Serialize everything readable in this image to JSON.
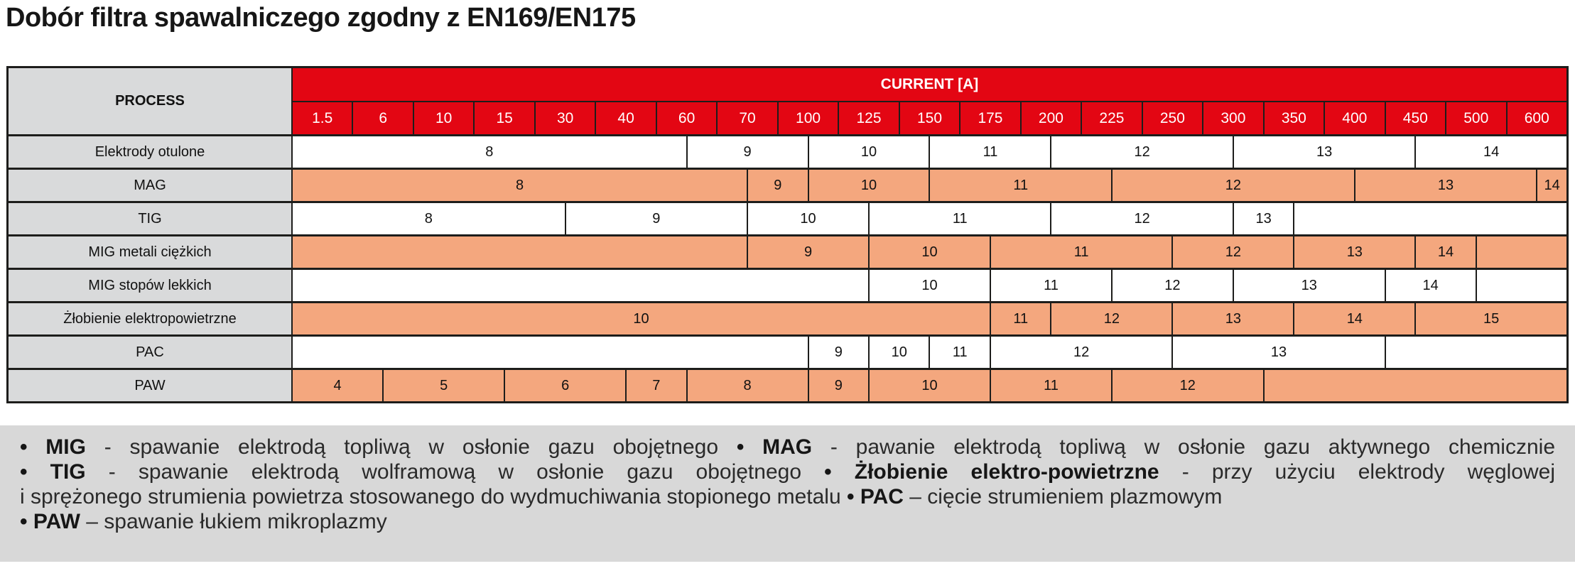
{
  "title": "Dobór filtra spawalniczego zgodny z EN169/EN175",
  "colors": {
    "header_red": "#e30613",
    "shade_salmon": "#f4a77e",
    "process_gray": "#d9dadb",
    "legend_gray": "#d8d8d8",
    "line_black": "#1d1d1b"
  },
  "table": {
    "process_header": "PROCESS",
    "current_header": "CURRENT [A]",
    "current_values": [
      "1.5",
      "6",
      "10",
      "15",
      "30",
      "40",
      "60",
      "70",
      "100",
      "125",
      "150",
      "175",
      "200",
      "225",
      "250",
      "300",
      "350",
      "400",
      "450",
      "500",
      "600"
    ],
    "half_columns_total": 42,
    "rows": [
      {
        "process": "Elektrody otulone",
        "shaded": false,
        "cells": [
          {
            "label": "8",
            "span": 13
          },
          {
            "label": "9",
            "span": 4
          },
          {
            "label": "10",
            "span": 4
          },
          {
            "label": "11",
            "span": 4
          },
          {
            "label": "12",
            "span": 6
          },
          {
            "label": "13",
            "span": 6
          },
          {
            "label": "14",
            "span": 5
          }
        ]
      },
      {
        "process": "MAG",
        "shaded": true,
        "cells": [
          {
            "label": "8",
            "span": 15
          },
          {
            "label": "9",
            "span": 2
          },
          {
            "label": "10",
            "span": 4
          },
          {
            "label": "11",
            "span": 6
          },
          {
            "label": "12",
            "span": 8
          },
          {
            "label": "13",
            "span": 6
          },
          {
            "label": "14",
            "span": 1
          }
        ]
      },
      {
        "process": "TIG",
        "shaded": false,
        "cells": [
          {
            "label": "8",
            "span": 9
          },
          {
            "label": "9",
            "span": 6
          },
          {
            "label": "10",
            "span": 4
          },
          {
            "label": "11",
            "span": 6
          },
          {
            "label": "12",
            "span": 6
          },
          {
            "label": "13",
            "span": 2
          },
          {
            "label": "",
            "span": 9
          }
        ]
      },
      {
        "process": "MIG metali ciężkich",
        "shaded": true,
        "cells": [
          {
            "label": "",
            "span": 15
          },
          {
            "label": "9",
            "span": 4
          },
          {
            "label": "10",
            "span": 4
          },
          {
            "label": "11",
            "span": 6
          },
          {
            "label": "12",
            "span": 4
          },
          {
            "label": "13",
            "span": 4
          },
          {
            "label": "14",
            "span": 2
          },
          {
            "label": "",
            "span": 3
          }
        ]
      },
      {
        "process": "MIG stopów lekkich",
        "shaded": false,
        "cells": [
          {
            "label": "",
            "span": 19
          },
          {
            "label": "10",
            "span": 4
          },
          {
            "label": "11",
            "span": 4
          },
          {
            "label": "12",
            "span": 4
          },
          {
            "label": "13",
            "span": 5
          },
          {
            "label": "14",
            "span": 3
          },
          {
            "label": "",
            "span": 3
          }
        ]
      },
      {
        "process": "Żłobienie elektropowietrzne",
        "shaded": true,
        "cells": [
          {
            "label": "10",
            "span": 23
          },
          {
            "label": "11",
            "span": 2
          },
          {
            "label": "12",
            "span": 4
          },
          {
            "label": "13",
            "span": 4
          },
          {
            "label": "14",
            "span": 4
          },
          {
            "label": "15",
            "span": 5
          }
        ]
      },
      {
        "process": "PAC",
        "shaded": false,
        "cells": [
          {
            "label": "",
            "span": 17
          },
          {
            "label": "9",
            "span": 2
          },
          {
            "label": "10",
            "span": 2
          },
          {
            "label": "11",
            "span": 2
          },
          {
            "label": "12",
            "span": 6
          },
          {
            "label": "13",
            "span": 7
          },
          {
            "label": "",
            "span": 6
          }
        ]
      },
      {
        "process": "PAW",
        "shaded": true,
        "cells": [
          {
            "label": "4",
            "span": 3
          },
          {
            "label": "5",
            "span": 4
          },
          {
            "label": "6",
            "span": 4
          },
          {
            "label": "7",
            "span": 2
          },
          {
            "label": "8",
            "span": 4
          },
          {
            "label": "9",
            "span": 2
          },
          {
            "label": "10",
            "span": 4
          },
          {
            "label": "11",
            "span": 4
          },
          {
            "label": "12",
            "span": 5
          },
          {
            "label": "",
            "span": 10
          }
        ]
      }
    ]
  },
  "legend": {
    "lines": [
      {
        "segments": [
          {
            "text": "• MIG",
            "bold": true
          },
          {
            "text": " - spawanie elektrodą topliwą w osłonie gazu obojętnego ",
            "bold": false
          },
          {
            "text": "• MAG",
            "bold": true
          },
          {
            "text": " - pawanie elektrodą topliwą w osłonie gazu aktywnego chemicznie",
            "bold": false
          }
        ]
      },
      {
        "segments": [
          {
            "text": "• TIG",
            "bold": true
          },
          {
            "text": " - spawanie elektrodą wolframową w osłonie gazu obojętnego ",
            "bold": false
          },
          {
            "text": "• Żłobienie elektro-powietrzne",
            "bold": true
          },
          {
            "text": " - przy użyciu elektrody węglowej",
            "bold": false
          }
        ]
      },
      {
        "segments": [
          {
            "text": "i sprężonego strumienia powietrza stosowanego do wydmuchiwania stopionego metalu ",
            "bold": false
          },
          {
            "text": "• PAC",
            "bold": true
          },
          {
            "text": " – cięcie strumieniem plazmowym",
            "bold": false
          }
        ]
      },
      {
        "segments": [
          {
            "text": "• PAW",
            "bold": true
          },
          {
            "text": " – spawanie łukiem mikroplazmy",
            "bold": false
          }
        ]
      }
    ]
  }
}
